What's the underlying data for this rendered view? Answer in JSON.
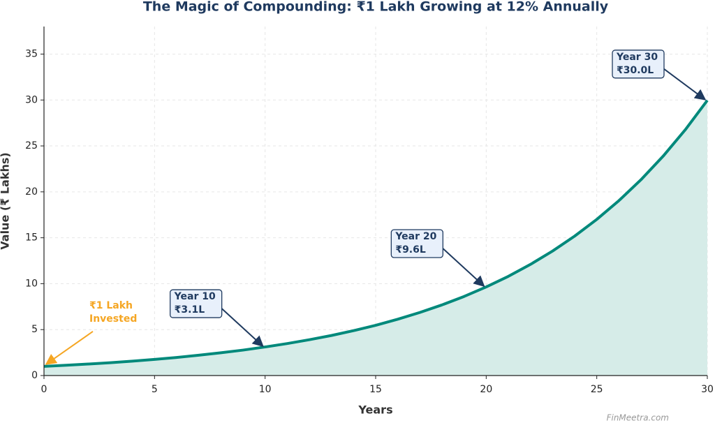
{
  "chart_data": {
    "type": "line",
    "title": "The Magic of Compounding: ₹1 Lakh Growing at 12% Annually",
    "x_label": "Years",
    "y_label": "Value (₹ Lakhs)",
    "x": [
      0,
      1,
      2,
      3,
      4,
      5,
      6,
      7,
      8,
      9,
      10,
      11,
      12,
      13,
      14,
      15,
      16,
      17,
      18,
      19,
      20,
      21,
      22,
      23,
      24,
      25,
      26,
      27,
      28,
      29,
      30
    ],
    "series": [
      {
        "color": "#00897b",
        "area_color": "#d6ece8",
        "values": [
          1.0,
          1.12,
          1.25,
          1.4,
          1.57,
          1.76,
          1.97,
          2.21,
          2.48,
          2.77,
          3.11,
          3.48,
          3.9,
          4.36,
          4.89,
          5.47,
          6.13,
          6.87,
          7.69,
          8.61,
          9.65,
          10.8,
          12.1,
          13.55,
          15.18,
          17.0,
          19.04,
          21.32,
          23.88,
          26.75,
          29.96
        ]
      }
    ],
    "xlim": [
      0,
      30
    ],
    "ylim": [
      0,
      38
    ],
    "xticks": [
      0,
      5,
      10,
      15,
      20,
      25,
      30
    ],
    "yticks": [
      0,
      5,
      10,
      15,
      20,
      25,
      30,
      35
    ],
    "grid": true,
    "annotations": [
      {
        "x": 0,
        "lines": [
          "₹1 Lakh",
          "Invested"
        ],
        "color": "#f5a623"
      },
      {
        "x": 10,
        "lines": [
          "Year 10",
          "₹3.1L"
        ],
        "color": "#1f3a5f"
      },
      {
        "x": 20,
        "lines": [
          "Year 20",
          "₹9.6L"
        ],
        "color": "#1f3a5f"
      },
      {
        "x": 30,
        "lines": [
          "Year 30",
          "₹30.0L"
        ],
        "color": "#1f3a5f"
      }
    ],
    "watermark": "FinMeetra.com"
  }
}
